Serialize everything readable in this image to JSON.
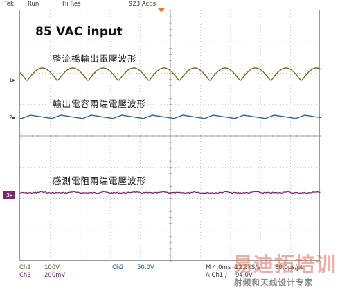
{
  "topbar": {
    "brand": "Tek",
    "run_state": "Run",
    "mode": "Hi Res",
    "acqs": "923 Acqs"
  },
  "title": "85 VAC input",
  "annotations": {
    "rect_wave": "整流橋輸出電壓波形",
    "cap_wave": "輸出電容兩端電壓波形",
    "res_wave": "感測電阻兩端電壓波形"
  },
  "markers": {
    "ch1": "1",
    "ch2": "2",
    "ch3": "3"
  },
  "colors": {
    "ch1": "#7a6520",
    "ch2": "#2a5f8f",
    "ch3": "#7b2b6b",
    "trigger": "#e8792b",
    "grid": "#b0b0b0"
  },
  "status": {
    "ch1_label": "Ch1",
    "ch1_scale": "100V",
    "ch2_label": "Ch2",
    "ch2_scale": "50.0V",
    "ch3_label": "Ch3",
    "ch3_scale": "200mV",
    "timebase": "M 4.0ms",
    "sample_rate": "12.5kS/s",
    "record": "80.0μs/pt",
    "trigger_source": "A  Ch1  ∕",
    "trigger_level": "94.0V"
  },
  "watermark": {
    "logo": "易迪拓培训",
    "subtitle": "射频和天线设计专家"
  }
}
